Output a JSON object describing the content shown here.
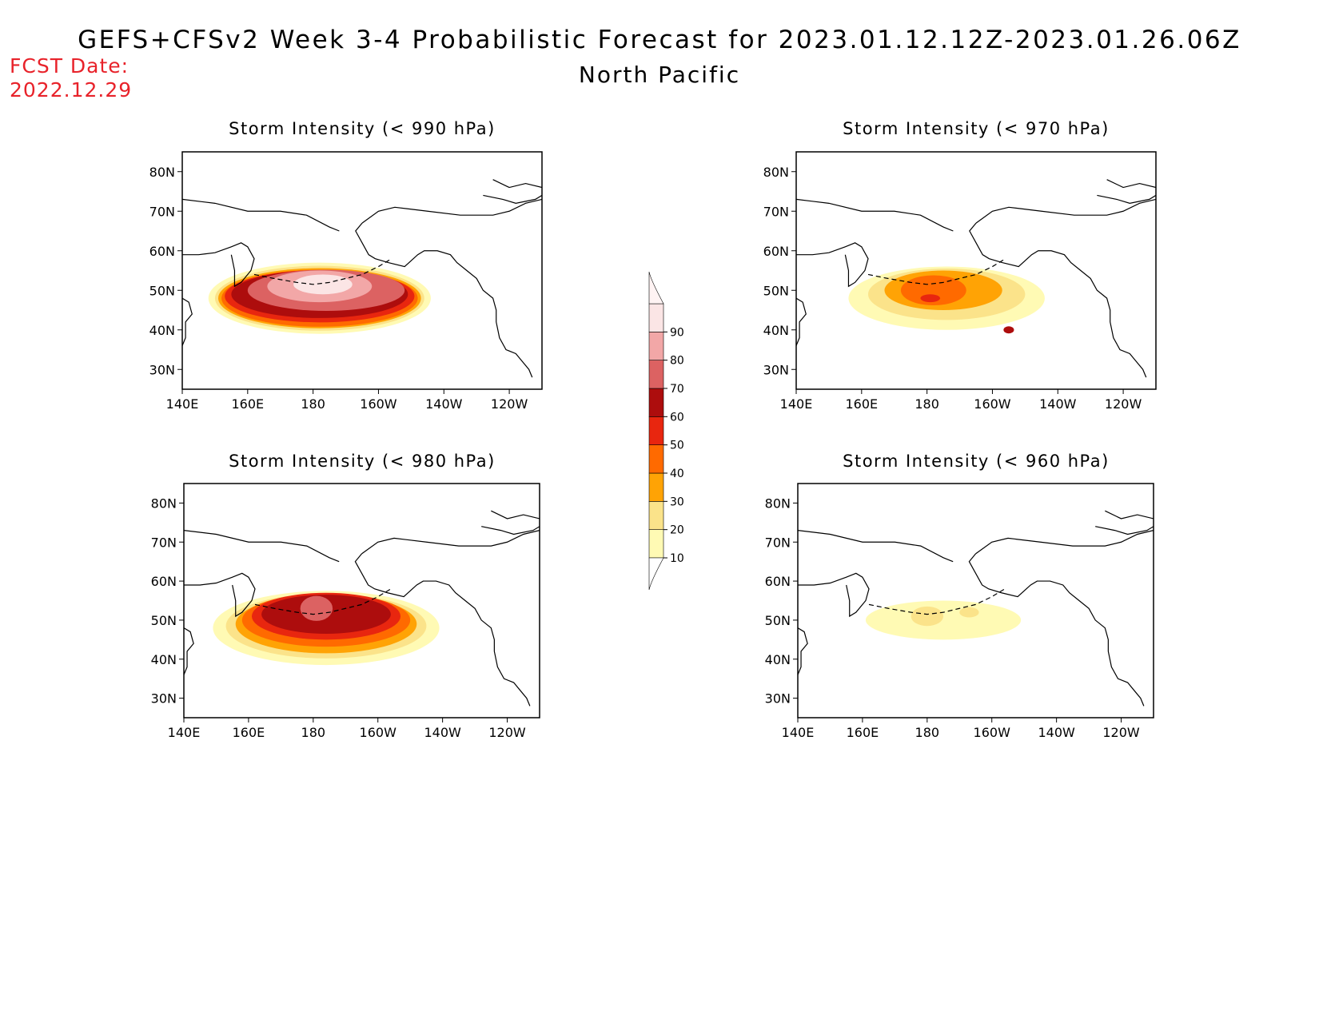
{
  "header": {
    "title": "GEFS+CFSv2 Week 3-4 Probabilistic Forecast for 2023.01.12.12Z-2023.01.26.06Z",
    "subtitle": "North Pacific",
    "fcst_label": "FCST Date:",
    "fcst_value": "2022.12.29"
  },
  "axes": {
    "lat_ticks": [
      "80N",
      "70N",
      "60N",
      "50N",
      "40N",
      "30N"
    ],
    "lon_ticks": [
      "140E",
      "160E",
      "180",
      "160W",
      "140W",
      "120W"
    ]
  },
  "colorbar": {
    "levels": [
      10,
      20,
      30,
      40,
      50,
      60,
      70,
      80,
      90
    ],
    "labels": [
      "10",
      "20",
      "30",
      "40",
      "50",
      "60",
      "70",
      "80",
      "90"
    ],
    "colors": [
      "#fffab4",
      "#fbe38a",
      "#ffa305",
      "#ff6a00",
      "#e8260f",
      "#ad0d0d",
      "#dc6262",
      "#f2a7a7",
      "#fbe5e5",
      "#fff3f3"
    ]
  },
  "panels": [
    {
      "title": "Storm Intensity (< 990 hPa)",
      "blobs": [
        {
          "lon": 182,
          "lat": 48,
          "rx": 34,
          "ry": 9,
          "level": 0
        },
        {
          "lon": 182,
          "lat": 48,
          "rx": 32,
          "ry": 8.2,
          "level": 1
        },
        {
          "lon": 182,
          "lat": 48,
          "rx": 31,
          "ry": 7.6,
          "level": 2
        },
        {
          "lon": 182,
          "lat": 48,
          "rx": 30,
          "ry": 7.2,
          "level": 3
        },
        {
          "lon": 182,
          "lat": 48.5,
          "rx": 29,
          "ry": 6.6,
          "level": 4
        },
        {
          "lon": 182,
          "lat": 49,
          "rx": 27,
          "ry": 6,
          "level": 5
        },
        {
          "lon": 184,
          "lat": 50,
          "rx": 24,
          "ry": 5.2,
          "level": 6
        },
        {
          "lon": 182,
          "lat": 51,
          "rx": 16,
          "ry": 4,
          "level": 7
        },
        {
          "lon": 183,
          "lat": 51.5,
          "rx": 9,
          "ry": 2.5,
          "level": 8
        }
      ]
    },
    {
      "title": "Storm Intensity (< 970 hPa)",
      "blobs": [
        {
          "lon": 186,
          "lat": 48,
          "rx": 30,
          "ry": 8,
          "level": 0
        },
        {
          "lon": 186,
          "lat": 49,
          "rx": 24,
          "ry": 6.5,
          "level": 1
        },
        {
          "lon": 185,
          "lat": 50,
          "rx": 18,
          "ry": 5,
          "level": 2
        },
        {
          "lon": 182,
          "lat": 50,
          "rx": 10,
          "ry": 3.8,
          "level": 3
        },
        {
          "lon": 181,
          "lat": 48,
          "rx": 3,
          "ry": 1,
          "level": 4
        },
        {
          "lon": 205,
          "lat": 40,
          "rx": 1.6,
          "ry": 0.9,
          "level": 5
        }
      ]
    },
    {
      "title": "Storm Intensity (< 980 hPa)",
      "blobs": [
        {
          "lon": 184,
          "lat": 48,
          "rx": 35,
          "ry": 9.5,
          "level": 0
        },
        {
          "lon": 184,
          "lat": 48.5,
          "rx": 31,
          "ry": 8.3,
          "level": 1
        },
        {
          "lon": 184,
          "lat": 49,
          "rx": 28,
          "ry": 7.5,
          "level": 2
        },
        {
          "lon": 184,
          "lat": 50,
          "rx": 26,
          "ry": 6.8,
          "level": 3
        },
        {
          "lon": 184,
          "lat": 51,
          "rx": 23,
          "ry": 6,
          "level": 4
        },
        {
          "lon": 184,
          "lat": 51.5,
          "rx": 20,
          "ry": 5,
          "level": 5
        },
        {
          "lon": 181,
          "lat": 53,
          "rx": 5,
          "ry": 3.2,
          "level": 6
        }
      ]
    },
    {
      "title": "Storm Intensity (< 960 hPa)",
      "blobs": [
        {
          "lon": 185,
          "lat": 50,
          "rx": 24,
          "ry": 5,
          "level": 0
        },
        {
          "lon": 180,
          "lat": 51,
          "rx": 5,
          "ry": 2.5,
          "level": 1
        },
        {
          "lon": 193,
          "lat": 52,
          "rx": 3,
          "ry": 1.3,
          "level": 1
        }
      ]
    }
  ]
}
